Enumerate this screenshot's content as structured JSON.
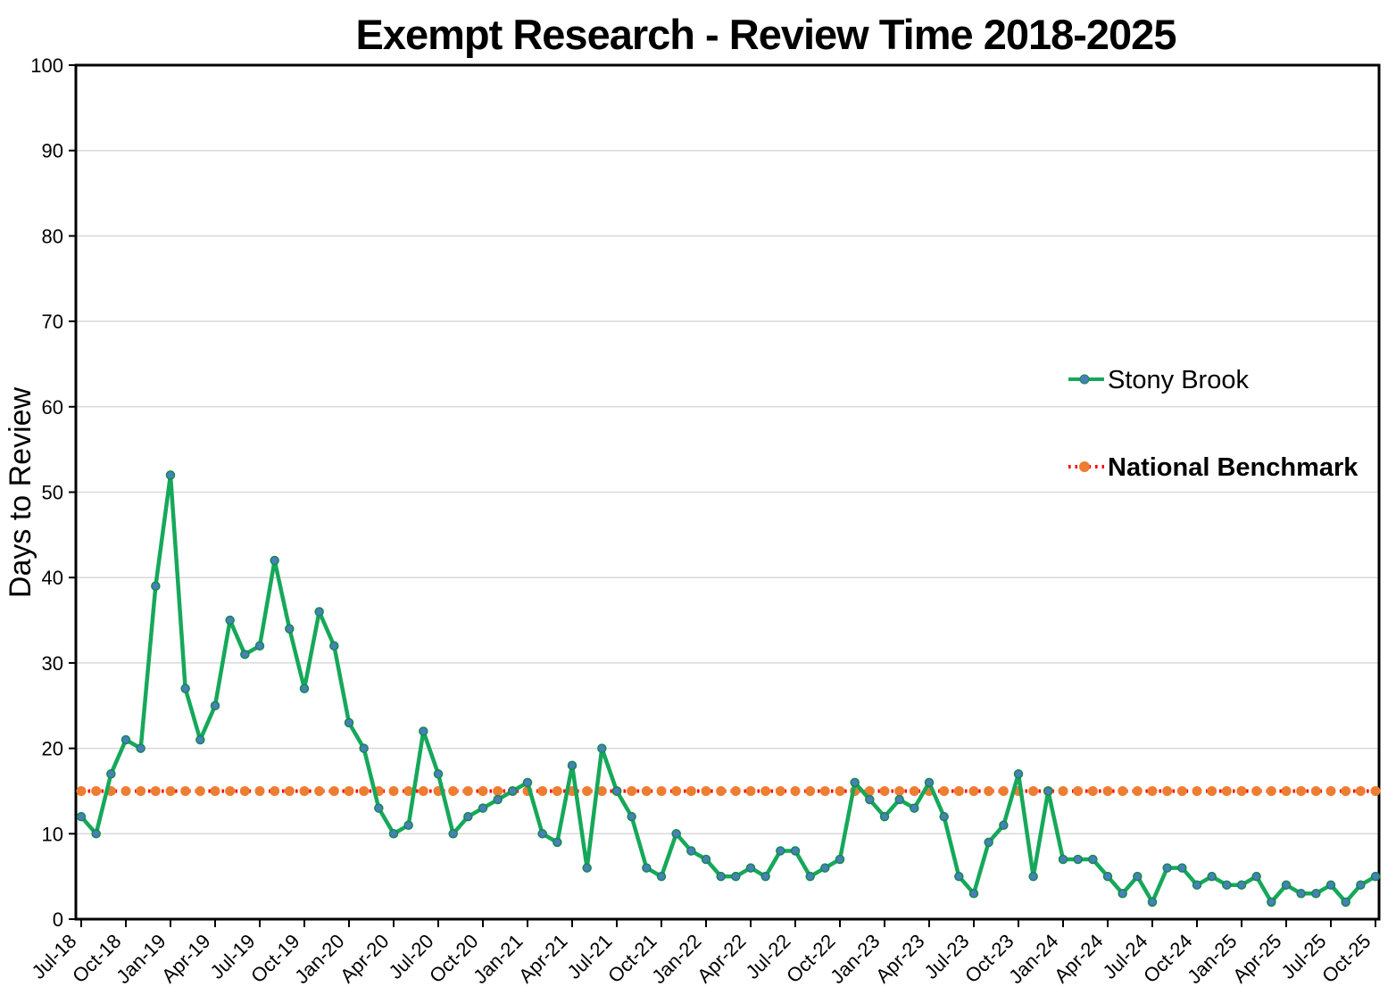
{
  "title": "Exempt Research - Review Time 2018-2025",
  "y_axis": {
    "title": "Days to Review",
    "min": 0,
    "max": 100,
    "tick_step": 10,
    "tick_labels": [
      "0",
      "10",
      "20",
      "30",
      "40",
      "50",
      "60",
      "70",
      "80",
      "90",
      "100"
    ]
  },
  "x_axis": {
    "label_every_n_months": 3,
    "shown_tick_labels": [
      "Jul-18",
      "Oct-18",
      "Jan-19",
      "Apr-19",
      "Jul-19",
      "Oct-19",
      "Jan-20",
      "Apr-20",
      "Jul-20",
      "Oct-20",
      "Jan-21",
      "Apr-21",
      "Jul-21",
      "Oct-21",
      "Jan-22",
      "Apr-22",
      "Jul-22",
      "Oct-22",
      "Jan-23",
      "Apr-23",
      "Jul-23",
      "Oct-23",
      "Jan-24",
      "Apr-24",
      "Jul-24",
      "Oct-24",
      "Jan-25",
      "Apr-25",
      "Jul-25",
      "Oct-25"
    ]
  },
  "legend": {
    "items": [
      {
        "label": "Stony Brook"
      },
      {
        "label": "National Benchmark"
      }
    ]
  },
  "colors": {
    "stony_brook_line": "#16A85A",
    "stony_brook_marker_fill": "#4A7EBB",
    "stony_brook_marker_stroke": "#128A4C",
    "benchmark_dot_line": "#FF0000",
    "benchmark_marker": "#ED7D31",
    "gridline": "#D9D9D9",
    "axis_border": "#000000"
  },
  "chart_data": {
    "type": "line",
    "title": "Exempt Research - Review Time 2018-2025",
    "xlabel": "",
    "ylabel": "Days to Review",
    "ylim": [
      0,
      100
    ],
    "grid": "horizontal",
    "legend_position": "right-middle",
    "x": [
      "Jul-18",
      "Aug-18",
      "Sep-18",
      "Oct-18",
      "Nov-18",
      "Dec-18",
      "Jan-19",
      "Feb-19",
      "Mar-19",
      "Apr-19",
      "May-19",
      "Jun-19",
      "Jul-19",
      "Aug-19",
      "Sep-19",
      "Oct-19",
      "Nov-19",
      "Dec-19",
      "Jan-20",
      "Feb-20",
      "Mar-20",
      "Apr-20",
      "May-20",
      "Jun-20",
      "Jul-20",
      "Aug-20",
      "Sep-20",
      "Oct-20",
      "Nov-20",
      "Dec-20",
      "Jan-21",
      "Feb-21",
      "Mar-21",
      "Apr-21",
      "May-21",
      "Jun-21",
      "Jul-21",
      "Aug-21",
      "Sep-21",
      "Oct-21",
      "Nov-21",
      "Dec-21",
      "Jan-22",
      "Feb-22",
      "Mar-22",
      "Apr-22",
      "May-22",
      "Jun-22",
      "Jul-22",
      "Aug-22",
      "Sep-22",
      "Oct-22",
      "Nov-22",
      "Dec-22",
      "Jan-23",
      "Feb-23",
      "Mar-23",
      "Apr-23",
      "May-23",
      "Jun-23",
      "Jul-23",
      "Aug-23",
      "Sep-23",
      "Oct-23",
      "Nov-23",
      "Dec-23",
      "Jan-24",
      "Feb-24",
      "Mar-24",
      "Apr-24",
      "May-24",
      "Jun-24",
      "Jul-24",
      "Aug-24",
      "Sep-24",
      "Oct-24",
      "Nov-24",
      "Dec-24",
      "Jan-25",
      "Feb-25",
      "Mar-25",
      "Apr-25",
      "May-25",
      "Jun-25",
      "Jul-25",
      "Aug-25",
      "Sep-25",
      "Oct-25"
    ],
    "series": [
      {
        "name": "Stony Brook",
        "values": [
          12,
          10,
          17,
          21,
          20,
          39,
          52,
          27,
          21,
          25,
          35,
          31,
          32,
          42,
          34,
          27,
          36,
          32,
          23,
          20,
          13,
          10,
          11,
          22,
          17,
          10,
          12,
          13,
          14,
          15,
          16,
          10,
          9,
          18,
          6,
          20,
          15,
          12,
          6,
          5,
          10,
          8,
          7,
          5,
          5,
          6,
          5,
          8,
          8,
          5,
          6,
          7,
          16,
          14,
          12,
          14,
          13,
          16,
          12,
          5,
          3,
          9,
          11,
          17,
          5,
          15,
          7,
          7,
          7,
          5,
          3,
          5,
          2,
          6,
          6,
          4,
          5,
          4,
          4,
          5,
          2,
          4,
          3,
          3,
          4,
          2,
          4,
          5
        ]
      },
      {
        "name": "National Benchmark",
        "constant": 15
      }
    ]
  }
}
